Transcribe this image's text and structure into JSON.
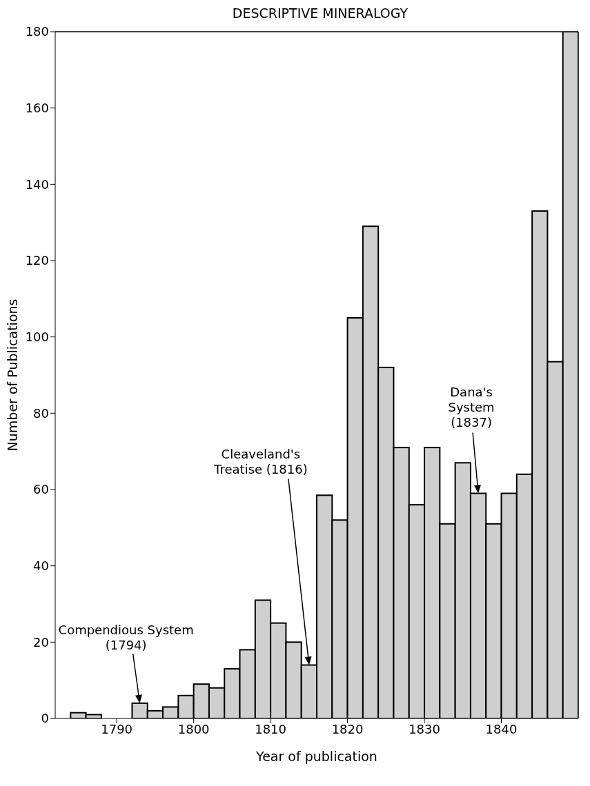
{
  "chart_data": {
    "type": "histogram",
    "title": "DESCRIPTIVE MINERALOGY",
    "xlabel": "Year of publication",
    "ylabel": "Number of Publications",
    "bins": [
      1784,
      1786,
      1788,
      1790,
      1792,
      1794,
      1796,
      1798,
      1800,
      1802,
      1804,
      1806,
      1808,
      1810,
      1812,
      1814,
      1816,
      1818,
      1820,
      1822,
      1824,
      1826,
      1828,
      1830,
      1832,
      1834,
      1836,
      1838,
      1840,
      1842,
      1844,
      1846,
      1848,
      1850
    ],
    "values": [
      1.5,
      1,
      0,
      0,
      4,
      2,
      3,
      6,
      9,
      8,
      13,
      18,
      31,
      25,
      20,
      14,
      58.5,
      52,
      105,
      129,
      92,
      71,
      56,
      71,
      51,
      67,
      59,
      51,
      59,
      64,
      133,
      93.5,
      180
    ],
    "color": "#cfcfcf",
    "xlim": [
      1782,
      1850
    ],
    "xticks": [
      1790,
      1800,
      1810,
      1820,
      1830,
      1840
    ],
    "ylim": [
      0,
      180
    ],
    "yticks": [
      0,
      20,
      40,
      60,
      80,
      100,
      120,
      140,
      160,
      180
    ],
    "grid": false,
    "legend": false,
    "annotations": [
      "Compendious System\n(1794)",
      "Cleaveland's\nTreatise (1816)",
      "Dana's\nSystem\n(1837)"
    ]
  }
}
